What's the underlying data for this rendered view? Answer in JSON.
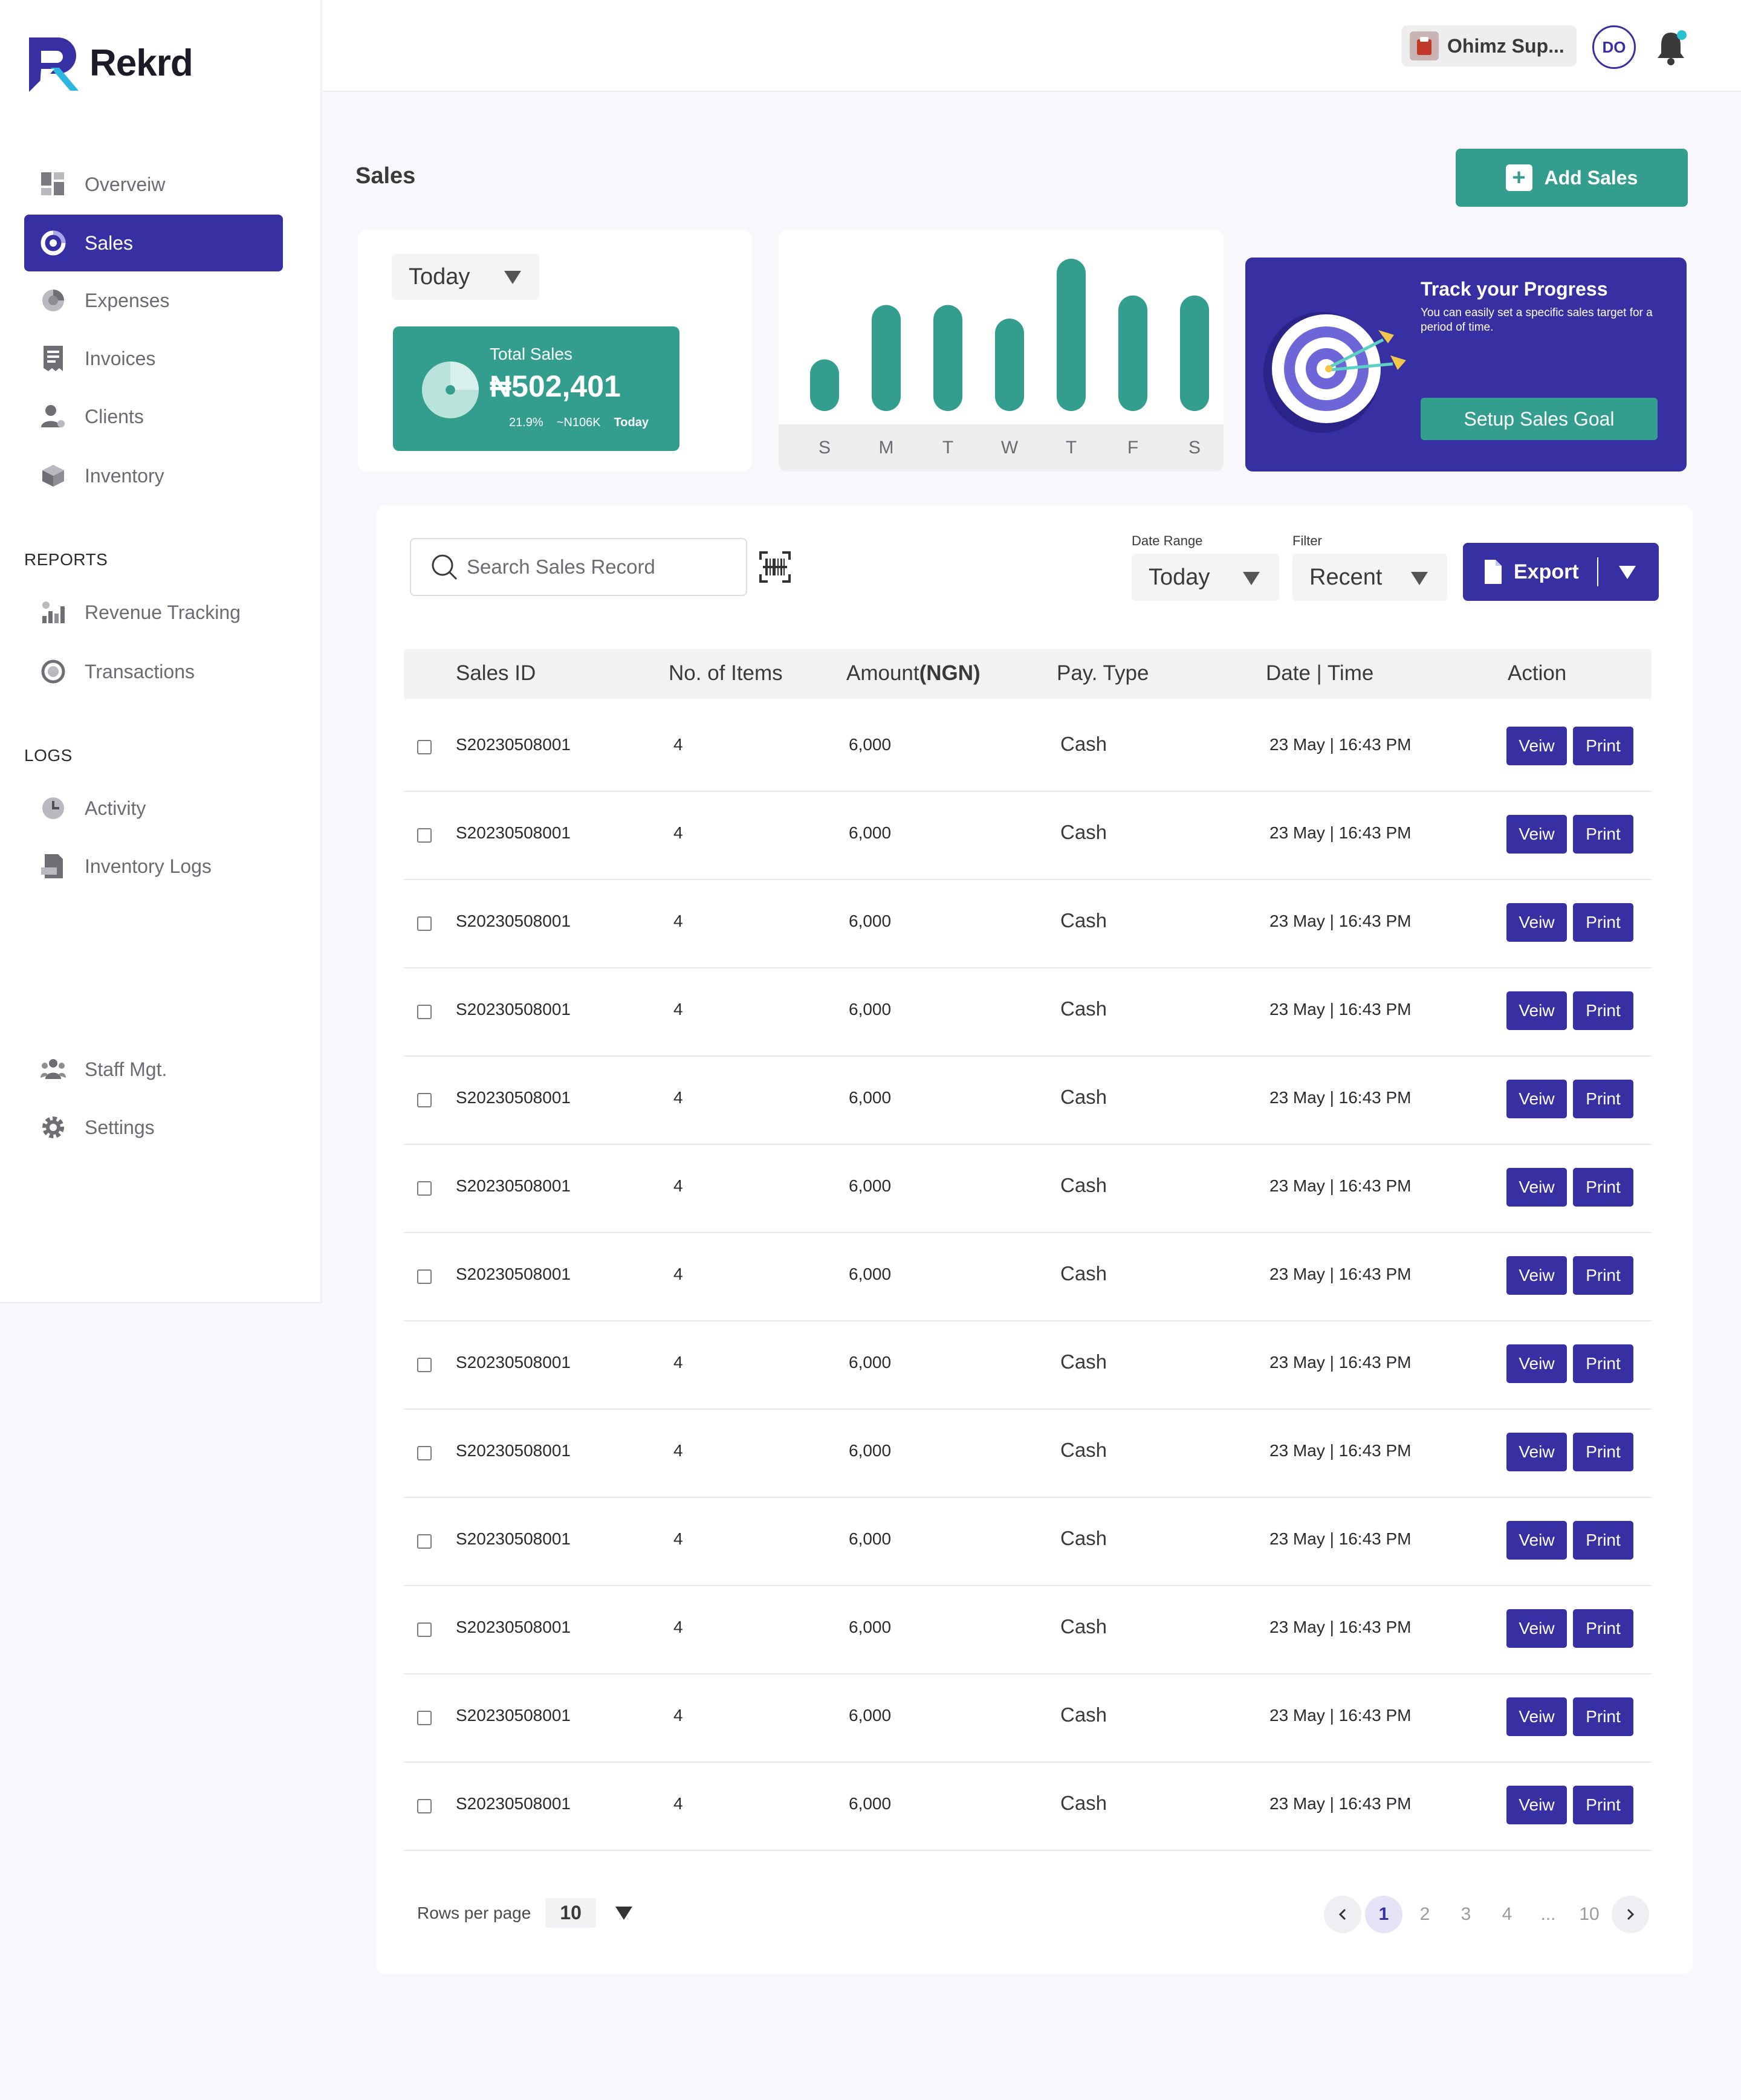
{
  "brand": {
    "name": "Rekrd",
    "accent": "#3730A3",
    "teal": "#339E8D"
  },
  "sidebar": {
    "main": [
      {
        "label": "Overveiw",
        "icon": "overview-grid-icon"
      },
      {
        "label": "Sales",
        "icon": "sales-donut-icon",
        "active": true
      },
      {
        "label": "Expenses",
        "icon": "expenses-pie-icon"
      },
      {
        "label": "Invoices",
        "icon": "invoice-receipt-icon"
      },
      {
        "label": "Clients",
        "icon": "clients-user-icon"
      },
      {
        "label": "Inventory",
        "icon": "inventory-box-icon"
      }
    ],
    "reports_heading": "REPORTS",
    "reports": [
      {
        "label": "Revenue Tracking",
        "icon": "revenue-bars-icon"
      },
      {
        "label": "Transactions",
        "icon": "transactions-cycle-icon"
      }
    ],
    "logs_heading": "LOGS",
    "logs": [
      {
        "label": "Activity",
        "icon": "activity-clock-icon"
      },
      {
        "label": "Inventory Logs",
        "icon": "inventory-logs-file-icon"
      }
    ],
    "bottom": [
      {
        "label": "Staff Mgt.",
        "icon": "staff-group-icon"
      },
      {
        "label": "Settings",
        "icon": "settings-gear-icon"
      }
    ]
  },
  "topbar": {
    "store_name": "Ohimz Sup...",
    "avatar_initials": "DO"
  },
  "page": {
    "title": "Sales",
    "add_button": "Add Sales"
  },
  "total_card": {
    "period": "Today",
    "label": "Total Sales",
    "value": "₦502,401",
    "change_pct": "21.9%",
    "change_amount": "~N106K",
    "change_period": "Today"
  },
  "chart_data": {
    "type": "bar",
    "categories": [
      "S",
      "M",
      "T",
      "W",
      "T",
      "F",
      "S"
    ],
    "values": [
      38,
      78,
      78,
      68,
      112,
      85,
      85
    ],
    "ylim": [
      0,
      120
    ],
    "grid": false,
    "color": "#339E8D"
  },
  "goal_card": {
    "title": "Track your Progress",
    "description": "You can easily set a specific sales target for a period of time.",
    "button": "Setup Sales Goal"
  },
  "table_controls": {
    "search_placeholder": "Search Sales Record",
    "date_range_label": "Date Range",
    "date_range_value": "Today",
    "filter_label": "Filter",
    "filter_value": "Recent",
    "export_label": "Export"
  },
  "table": {
    "headers": {
      "id": "Sales ID",
      "items": "No. of Items",
      "amount": "Amount",
      "amount_unit": "(NGN)",
      "pay": "Pay. Type",
      "datetime": "Date | Time",
      "action": "Action"
    },
    "view_label": "Veiw",
    "print_label": "Print",
    "rows": [
      {
        "id": "S20230508001",
        "items": "4",
        "amount": "6,000",
        "pay": "Cash",
        "datetime": "23 May | 16:43 PM"
      },
      {
        "id": "S20230508001",
        "items": "4",
        "amount": "6,000",
        "pay": "Cash",
        "datetime": "23 May | 16:43 PM"
      },
      {
        "id": "S20230508001",
        "items": "4",
        "amount": "6,000",
        "pay": "Cash",
        "datetime": "23 May | 16:43 PM"
      },
      {
        "id": "S20230508001",
        "items": "4",
        "amount": "6,000",
        "pay": "Cash",
        "datetime": "23 May | 16:43 PM"
      },
      {
        "id": "S20230508001",
        "items": "4",
        "amount": "6,000",
        "pay": "Cash",
        "datetime": "23 May | 16:43 PM"
      },
      {
        "id": "S20230508001",
        "items": "4",
        "amount": "6,000",
        "pay": "Cash",
        "datetime": "23 May | 16:43 PM"
      },
      {
        "id": "S20230508001",
        "items": "4",
        "amount": "6,000",
        "pay": "Cash",
        "datetime": "23 May | 16:43 PM"
      },
      {
        "id": "S20230508001",
        "items": "4",
        "amount": "6,000",
        "pay": "Cash",
        "datetime": "23 May | 16:43 PM"
      },
      {
        "id": "S20230508001",
        "items": "4",
        "amount": "6,000",
        "pay": "Cash",
        "datetime": "23 May | 16:43 PM"
      },
      {
        "id": "S20230508001",
        "items": "4",
        "amount": "6,000",
        "pay": "Cash",
        "datetime": "23 May | 16:43 PM"
      },
      {
        "id": "S20230508001",
        "items": "4",
        "amount": "6,000",
        "pay": "Cash",
        "datetime": "23 May | 16:43 PM"
      },
      {
        "id": "S20230508001",
        "items": "4",
        "amount": "6,000",
        "pay": "Cash",
        "datetime": "23 May | 16:43 PM"
      },
      {
        "id": "S20230508001",
        "items": "4",
        "amount": "6,000",
        "pay": "Cash",
        "datetime": "23 May | 16:43 PM"
      }
    ]
  },
  "pagination": {
    "rows_per_page_label": "Rows per page",
    "rows_per_page_value": "10",
    "pages": [
      "1",
      "2",
      "3",
      "4",
      "...",
      "10"
    ],
    "current": "1"
  }
}
